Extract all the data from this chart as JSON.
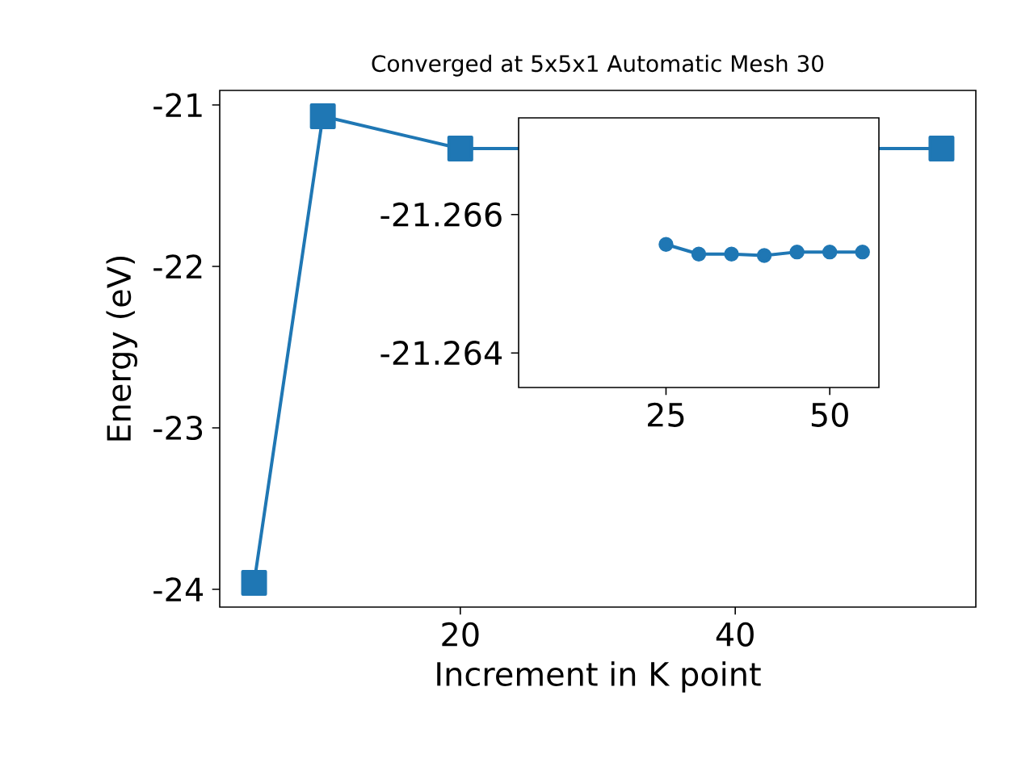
{
  "chart_data": [
    {
      "type": "line",
      "title": "Converged at 5x5x1 Automatic Mesh 30",
      "xlabel": "Increment in K point",
      "ylabel": "Energy (eV)",
      "x": [
        5,
        10,
        20,
        55
      ],
      "values": [
        -23.96,
        -21.07,
        -21.27,
        -21.27
      ],
      "color": "#1f77b4",
      "marker": "square",
      "xlim": [
        2.5,
        57.5
      ],
      "ylim": [
        -24.11,
        -20.91
      ],
      "xticks": [
        20,
        40
      ],
      "yticks": [
        -24,
        -23,
        -22,
        -21
      ]
    },
    {
      "type": "line",
      "x": [
        25,
        30,
        35,
        40,
        45,
        50,
        55
      ],
      "values": [
        -21.26557,
        -21.26543,
        -21.26543,
        -21.26541,
        -21.26545,
        -21.26545,
        -21.26545
      ],
      "color": "#1f77b4",
      "marker": "circle",
      "xlim": [
        2.5,
        57.5
      ],
      "ylim": [
        -21.2635,
        -21.2674
      ],
      "xticks": [
        25,
        50
      ],
      "yticks": [
        -21.266,
        -21.264
      ]
    }
  ]
}
